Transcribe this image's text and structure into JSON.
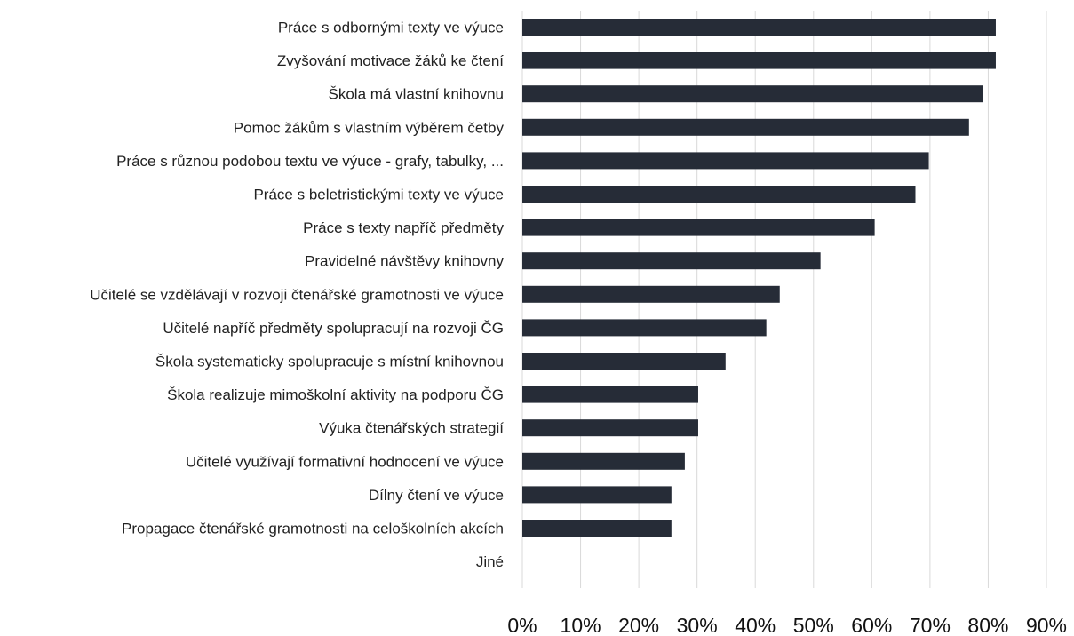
{
  "chart_data": {
    "type": "bar",
    "orientation": "horizontal",
    "title": "",
    "xlabel": "",
    "ylabel": "",
    "xlim": [
      0,
      90
    ],
    "x_ticks": [
      "0%",
      "10%",
      "20%",
      "30%",
      "40%",
      "50%",
      "60%",
      "70%",
      "80%",
      "90%"
    ],
    "grid": "vertical",
    "legend": "none",
    "bar_color": "#262c37",
    "grid_color": "#d9d9d9",
    "categories": [
      "Práce s odbornými texty ve výuce",
      "Zvyšování motivace žáků ke čtení",
      "Škola má vlastní knihovnu",
      "Pomoc žákům s vlastním výběrem četby",
      "Práce s různou podobou textu ve výuce - grafy, tabulky, ...",
      "Práce s beletristickými texty ve výuce",
      "Práce s texty napříč předměty",
      "Pravidelné návštěvy knihovny",
      "Učitelé se vzdělávají v rozvoji čtenářské gramotnosti ve výuce",
      "Učitelé napříč předměty spolupracují na rozvoji ČG",
      "Škola systematicky spolupracuje s místní knihovnou",
      "Škola realizuje mimoškolní aktivity na podporu ČG",
      "Výuka čtenářských strategií",
      "Učitelé využívají formativní hodnocení ve výuce",
      "Dílny čtení ve výuce",
      "Propagace čtenářské gramotnosti na celoškolních akcích",
      "Jiné"
    ],
    "values": [
      81.3,
      81.3,
      79.1,
      76.7,
      69.8,
      67.5,
      60.5,
      51.2,
      44.2,
      41.9,
      34.9,
      30.2,
      30.2,
      27.9,
      25.6,
      25.6,
      0
    ]
  }
}
